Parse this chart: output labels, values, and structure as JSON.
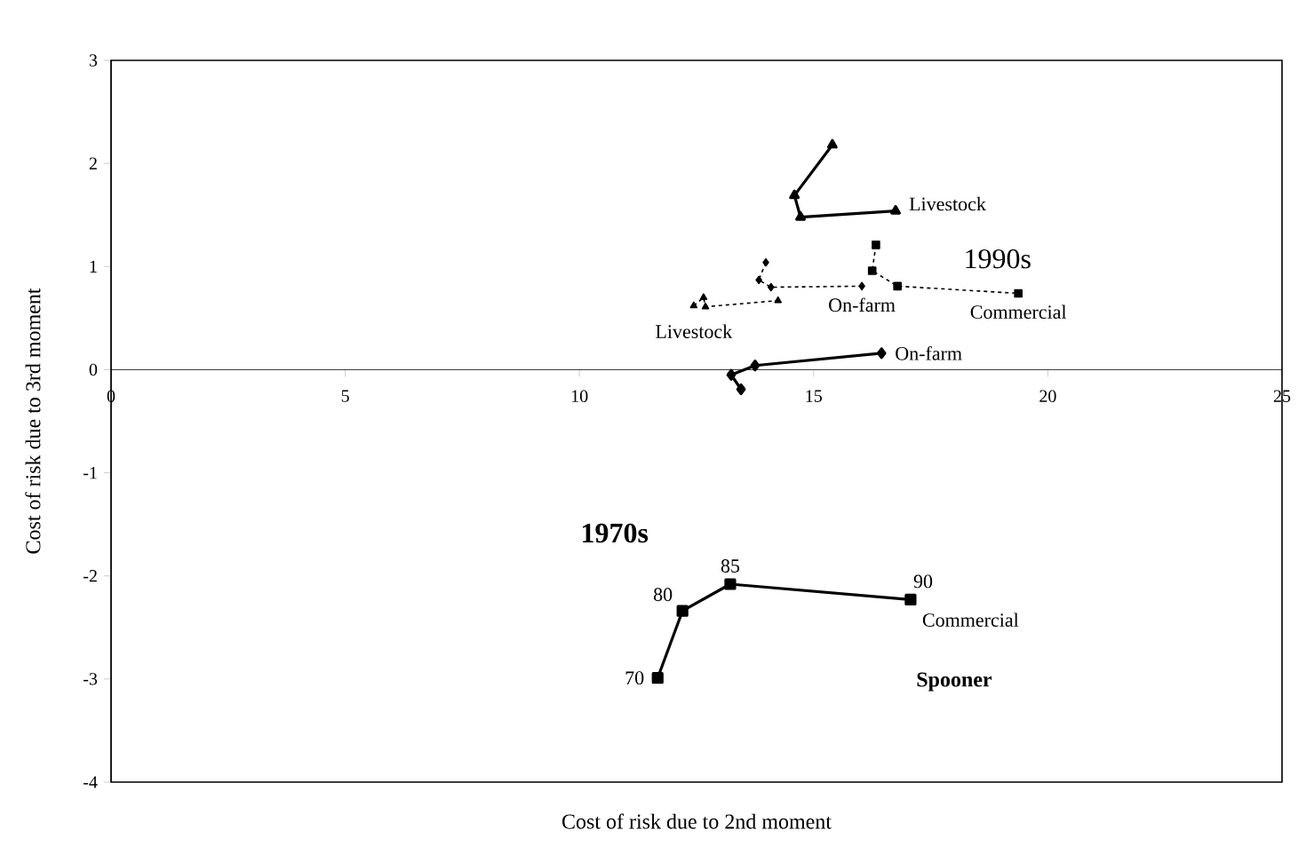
{
  "chart_data": {
    "type": "line",
    "xlabel": "Cost of risk due to 2nd moment",
    "ylabel": "Cost of risk due to 3rd moment",
    "xlim": [
      0,
      25
    ],
    "ylim": [
      -4,
      3
    ],
    "xticks": [
      0,
      5,
      10,
      15,
      20,
      25
    ],
    "yticks": [
      -4,
      -3,
      -2,
      -1,
      0,
      1,
      2,
      3
    ],
    "grid": false,
    "legend": false,
    "series": [
      {
        "name": "Livestock",
        "color": "#000000",
        "marker": "triangle",
        "line_style": "solid",
        "x": [
          15.4,
          14.59,
          14.72,
          16.75
        ],
        "values": [
          2.18,
          1.69,
          1.48,
          1.54
        ]
      },
      {
        "name": "On-farm",
        "color": "#000000",
        "marker": "diamond",
        "line_style": "solid",
        "x": [
          13.45,
          13.24,
          13.75,
          16.45
        ],
        "values": [
          -0.19,
          -0.05,
          0.04,
          0.16
        ]
      },
      {
        "name": "Commercial",
        "color": "#000000",
        "marker": "square",
        "line_style": "solid",
        "x": [
          11.67,
          12.2,
          13.22,
          17.07
        ],
        "values": [
          -2.99,
          -2.34,
          -2.08,
          -2.23
        ]
      },
      {
        "name": "Livestock",
        "color": "#000000",
        "marker": "triangle",
        "line_style": "dotted",
        "x": [
          12.44,
          12.65,
          12.69,
          14.24
        ],
        "values": [
          0.62,
          0.7,
          0.61,
          0.67
        ]
      },
      {
        "name": "On-farm",
        "color": "#000000",
        "marker": "diamond",
        "line_style": "dotted",
        "x": [
          13.98,
          13.83,
          14.09,
          16.03
        ],
        "values": [
          1.04,
          0.87,
          0.8,
          0.81
        ]
      },
      {
        "name": "Commercial",
        "color": "#000000",
        "marker": "square",
        "line_style": "dotted",
        "x": [
          16.33,
          16.25,
          16.79,
          19.37
        ],
        "values": [
          1.21,
          0.96,
          0.81,
          0.74
        ]
      }
    ],
    "annotations": [
      {
        "text": "70",
        "x": 11.67,
        "y": -2.99
      },
      {
        "text": "80",
        "x": 12.2,
        "y": -2.34
      },
      {
        "text": "85",
        "x": 13.22,
        "y": -2.08
      },
      {
        "text": "90",
        "x": 17.07,
        "y": -2.23
      },
      "1970s",
      "1990s",
      "Spooner"
    ]
  }
}
